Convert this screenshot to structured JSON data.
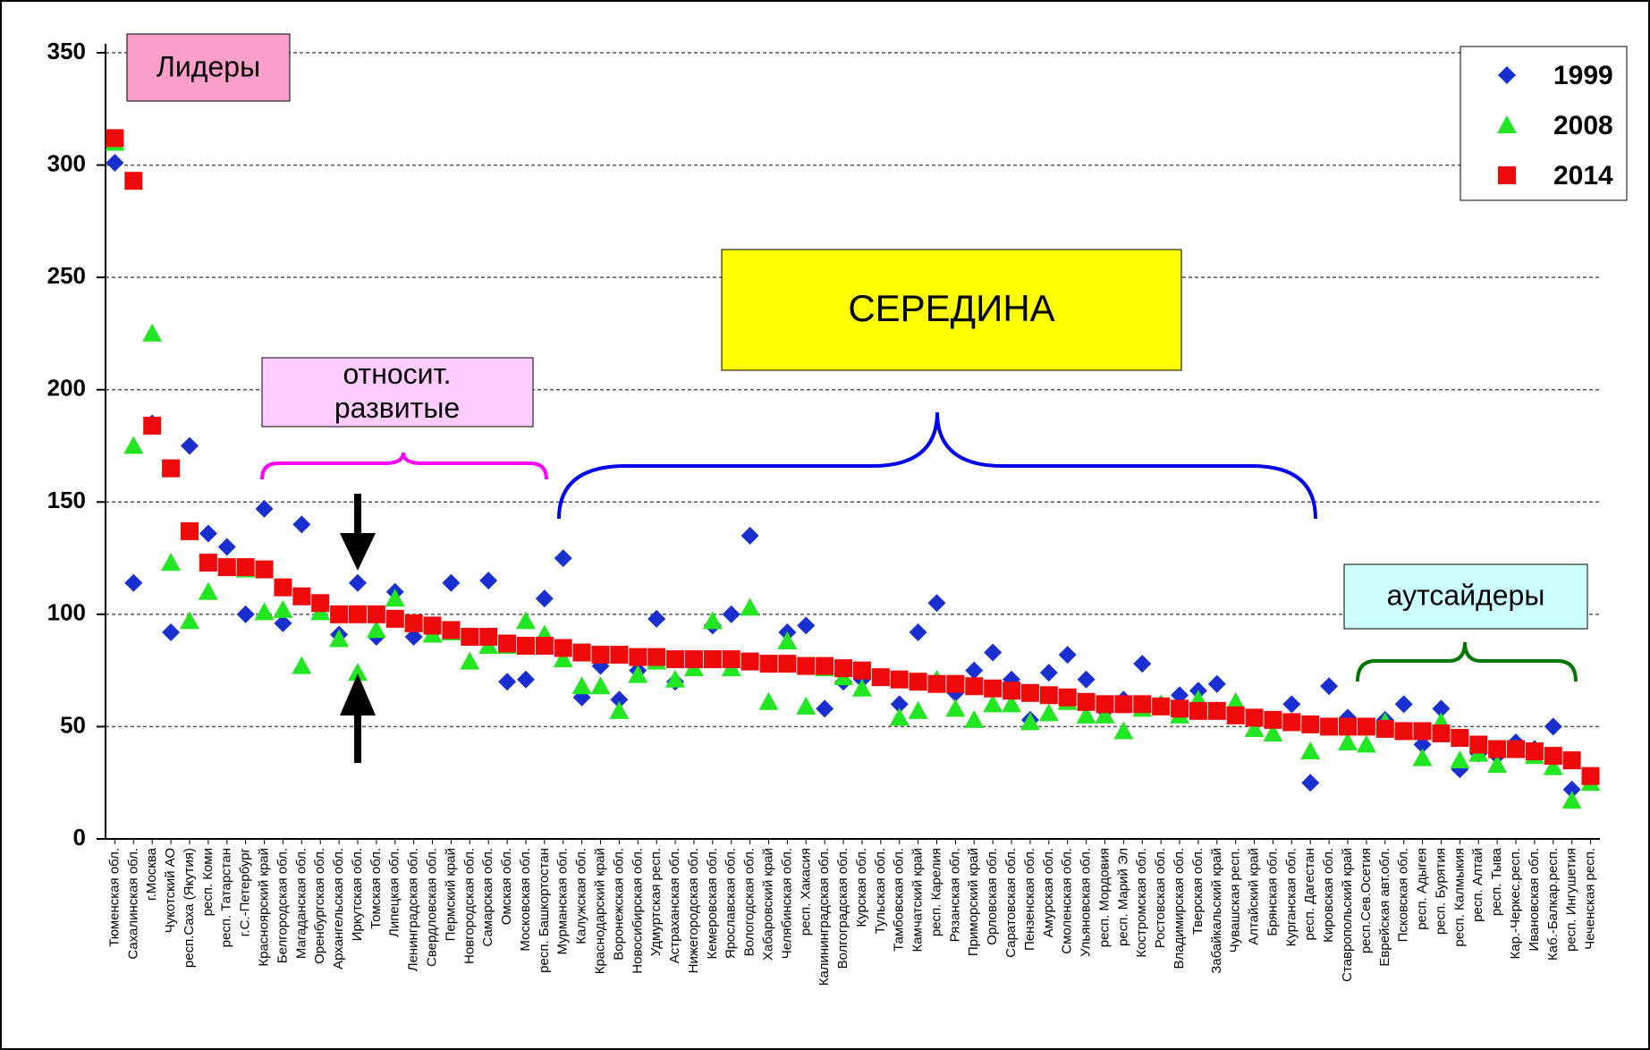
{
  "chart_data": {
    "type": "scatter",
    "categories": [
      "Тюменская обл.",
      "Сахалинская обл.",
      "г.Москва",
      "Чукотский АО",
      "респ.Саха (Якутия)",
      "респ. Коми",
      "респ. Татарстан",
      "г.С.-Петербург",
      "Красноярский край",
      "Белгородская обл.",
      "Магаданская обл.",
      "Оренбургская обл.",
      "Архангельская обл.",
      "Иркутская обл.",
      "Томская обл.",
      "Липецкая обл.",
      "Ленинградская обл.",
      "Свердловская обл.",
      "Пермский край",
      "Новгородская обл.",
      "Самарская обл.",
      "Омская обл.",
      "Московская обл.",
      "респ. Башкортостан",
      "Мурманская обл.",
      "Калужская обл.",
      "Краснодарский край",
      "Воронежская обл.",
      "Новосибирская обл.",
      "Удмуртская респ.",
      "Астраханская обл.",
      "Нижегородская обл.",
      "Кемеровская обл.",
      "Ярославская обл.",
      "Вологодская обл.",
      "Хабаровский край",
      "Челябинская обл.",
      "респ. Хакасия",
      "Калининградская обл.",
      "Волгоградская обл.",
      "Курская обл.",
      "Тульская обл.",
      "Тамбовская обл.",
      "Камчатский край",
      "респ. Карелия",
      "Рязанская обл.",
      "Приморский край",
      "Орловская обл.",
      "Саратовская обл.",
      "Пензенская обл.",
      "Амурская обл.",
      "Смоленская обл.",
      "Ульяновская обл.",
      "респ. Мордовия",
      "респ. Марий Эл",
      "Костромская обл.",
      "Ростовская обл.",
      "Владимирская обл.",
      "Тверская обл.",
      "Забайкальский край",
      "Чувашская респ.",
      "Алтайский край",
      "Брянская обл.",
      "Курганская обл.",
      "респ. Дагестан",
      "Кировская обл.",
      "Ставропольский край",
      "респ.Сев.Осетия",
      "Еврейская авт.обл.",
      "Псковская обл.",
      "респ. Адыгея",
      "респ. Бурятия",
      "респ. Калмыкия",
      "респ. Алтай",
      "респ. Тыва",
      "Кар.-Черкес.респ.",
      "Ивановская обл.",
      "Каб.-Балкар.респ.",
      "респ. Ингушетия",
      "Чеченская респ."
    ],
    "series": [
      {
        "name": "1999",
        "color": "#1a2fd0",
        "marker": "diamond",
        "values": [
          301,
          114,
          185,
          92,
          175,
          136,
          130,
          100,
          147,
          96,
          140,
          103,
          91,
          114,
          90,
          110,
          90,
          92,
          114,
          90,
          115,
          70,
          71,
          107,
          125,
          63,
          77,
          62,
          75,
          98,
          70,
          78,
          95,
          100,
          135,
          78,
          92,
          95,
          58,
          70,
          71,
          72,
          60,
          92,
          105,
          65,
          75,
          83,
          71,
          53,
          74,
          82,
          71,
          57,
          62,
          78,
          60,
          64,
          66,
          69,
          57,
          53,
          52,
          60,
          25,
          68,
          54,
          50,
          53,
          60,
          42,
          58,
          31,
          38,
          37,
          43,
          40,
          50,
          22,
          27
        ]
      },
      {
        "name": "2008",
        "color": "#22e622",
        "marker": "triangle",
        "values": [
          310,
          175,
          225,
          123,
          97,
          110,
          121,
          120,
          101,
          102,
          77,
          101,
          89,
          74,
          93,
          107,
          96,
          91,
          92,
          79,
          86,
          86,
          97,
          91,
          80,
          68,
          68,
          57,
          73,
          79,
          71,
          76,
          97,
          76,
          103,
          61,
          88,
          59,
          76,
          72,
          67,
          72,
          54,
          57,
          71,
          58,
          53,
          60,
          60,
          52,
          56,
          61,
          55,
          55,
          48,
          58,
          60,
          55,
          62,
          57,
          61,
          49,
          47,
          52,
          39,
          50,
          43,
          42,
          52,
          48,
          36,
          52,
          35,
          38,
          33,
          40,
          37,
          32,
          17,
          25
        ]
      },
      {
        "name": "2014",
        "color": "#ee0a0a",
        "marker": "square",
        "values": [
          312,
          293,
          184,
          165,
          137,
          123,
          121,
          121,
          120,
          112,
          108,
          105,
          100,
          100,
          100,
          98,
          96,
          95,
          93,
          90,
          90,
          87,
          86,
          86,
          85,
          83,
          82,
          82,
          81,
          81,
          80,
          80,
          80,
          80,
          79,
          78,
          78,
          77,
          77,
          76,
          75,
          72,
          71,
          70,
          69,
          69,
          68,
          67,
          66,
          65,
          64,
          63,
          61,
          60,
          60,
          60,
          59,
          58,
          57,
          57,
          55,
          54,
          53,
          52,
          51,
          50,
          50,
          50,
          49,
          48,
          48,
          47,
          45,
          42,
          40,
          40,
          39,
          37,
          35,
          28
        ]
      }
    ],
    "ylim": [
      0,
      350
    ],
    "yticks": [
      0,
      50,
      100,
      150,
      200,
      250,
      300,
      350
    ],
    "grid": true,
    "legend": "upper right",
    "annotations": [
      "Лидеры",
      "относит. развитые",
      "СЕРЕДИНА",
      "аутсайдеры"
    ]
  }
}
